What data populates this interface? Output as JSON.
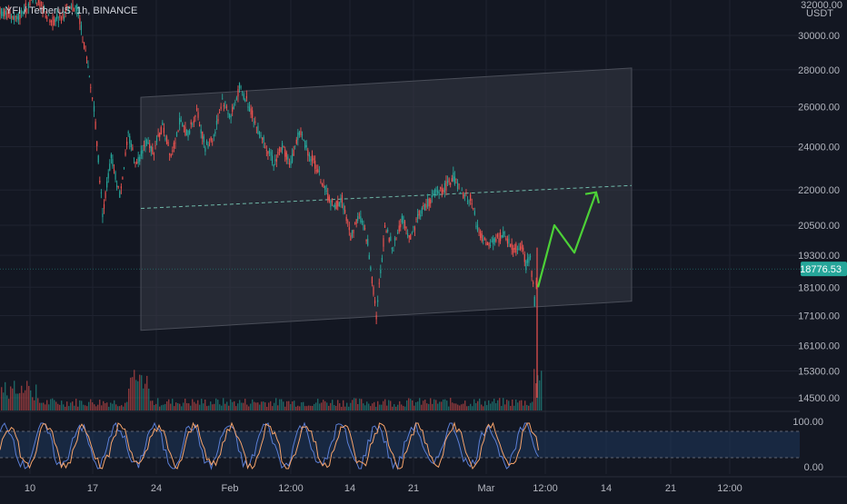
{
  "header": {
    "symbol_line": "YFI / TetherUS, 1h, BINANCE"
  },
  "price_axis": {
    "currency": "USDT",
    "top_label": "32000.00",
    "ticks": [
      "30000.00",
      "28000.00",
      "26000.00",
      "24000.00",
      "22000.00",
      "20500.00",
      "19300.00",
      "18100.00",
      "17100.00",
      "16100.00",
      "15300.00",
      "14500.00"
    ],
    "last_price": "18776.53"
  },
  "osc_axis": {
    "ticks": [
      "100.00",
      "0.00"
    ]
  },
  "time_axis": {
    "labels": [
      "10",
      "17",
      "24",
      "Feb",
      "12:00",
      "14",
      "21",
      "Mar",
      "12:00",
      "14",
      "21",
      "12:00"
    ]
  },
  "colors": {
    "background": "#131722",
    "up": "#26a69a",
    "down": "#ef5350",
    "last_price_tag": "#26a69a",
    "channel_fill": "#363a45",
    "projection": "#4cd137",
    "osc_k": "#f7a46b",
    "osc_d": "#5b7fd6",
    "osc_band": "#1e3a5f"
  },
  "chart_data": {
    "type": "line",
    "price_scale": "log",
    "series": [
      {
        "values_x_days": [
          0,
          2,
          4,
          6,
          8,
          9,
          10,
          10.6,
          11,
          12,
          13,
          14,
          15,
          16,
          17,
          18,
          19,
          20,
          21,
          22,
          23,
          24,
          25,
          26,
          27,
          28,
          29,
          30,
          31,
          32,
          33,
          34,
          35,
          36,
          37,
          38,
          39,
          40,
          41,
          42,
          43,
          44,
          45,
          46,
          47,
          48,
          49,
          50,
          51,
          52,
          53,
          54,
          55,
          56,
          57,
          58,
          59,
          60,
          61,
          61.5,
          62,
          62.5,
          62.9
        ],
        "values": [
          31500,
          31000,
          32500,
          30800,
          31500,
          31800,
          29000,
          27000,
          26000,
          21000,
          23500,
          21800,
          24500,
          23200,
          24200,
          23800,
          25000,
          23600,
          25200,
          24600,
          25800,
          24000,
          24500,
          26400,
          25500,
          27000,
          26200,
          25000,
          24200,
          23200,
          24000,
          23200,
          24800,
          23800,
          23000,
          22000,
          21200,
          21600,
          20000,
          21000,
          19800,
          17100,
          20400,
          19600,
          20800,
          20000,
          21000,
          21400,
          21900,
          22100,
          22600,
          21800,
          21600,
          20200,
          19600,
          19900,
          20100,
          19500,
          19700,
          18900,
          19200,
          17600,
          18776.53
        ]
      }
    ],
    "annotations": {
      "channel_top_left": 26500,
      "channel_top_right": 28100,
      "channel_bottom_left": 16600,
      "channel_bottom_right": 17600,
      "midline_left": 21200,
      "midline_right": 22200,
      "projection_path": [
        18100,
        20500,
        19400,
        21900
      ]
    }
  }
}
